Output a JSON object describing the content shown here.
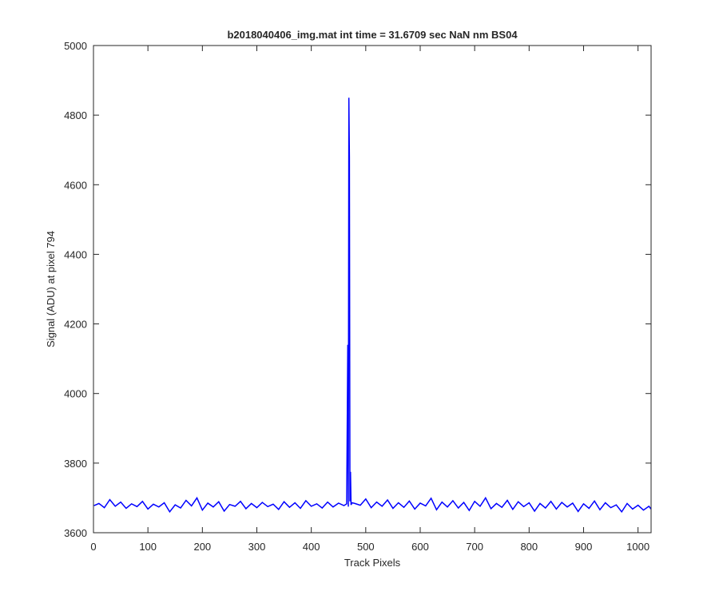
{
  "chart_data": {
    "type": "line",
    "title": "b2018040406_img.mat int time = 31.6709 sec  NaN nm BS04",
    "xlabel": "Track Pixels",
    "ylabel": "Signal (ADU) at pixel 794",
    "color": "#0000ff",
    "xlim": [
      0,
      1024
    ],
    "ylim": [
      3600,
      5000
    ],
    "xticks": [
      0,
      100,
      200,
      300,
      400,
      500,
      600,
      700,
      800,
      900,
      1000
    ],
    "yticks": [
      3600,
      3800,
      4000,
      4200,
      4400,
      4600,
      4800,
      5000
    ],
    "x": [
      1,
      10,
      20,
      30,
      40,
      50,
      60,
      70,
      80,
      90,
      100,
      110,
      120,
      130,
      140,
      150,
      160,
      170,
      180,
      190,
      200,
      210,
      220,
      230,
      240,
      250,
      260,
      270,
      280,
      290,
      300,
      310,
      320,
      330,
      340,
      350,
      360,
      370,
      380,
      390,
      400,
      410,
      420,
      430,
      440,
      450,
      460,
      465,
      467,
      468,
      469,
      470,
      471,
      472,
      473,
      475,
      480,
      490,
      500,
      510,
      520,
      530,
      540,
      550,
      560,
      570,
      580,
      590,
      600,
      610,
      620,
      630,
      640,
      650,
      660,
      670,
      680,
      690,
      700,
      710,
      720,
      730,
      740,
      750,
      760,
      770,
      780,
      790,
      800,
      810,
      820,
      830,
      840,
      850,
      860,
      870,
      880,
      890,
      900,
      910,
      920,
      930,
      940,
      950,
      960,
      970,
      980,
      990,
      1000,
      1010,
      1020,
      1024
    ],
    "values": [
      3678,
      3684,
      3672,
      3695,
      3676,
      3688,
      3670,
      3683,
      3675,
      3690,
      3668,
      3682,
      3674,
      3686,
      3660,
      3680,
      3671,
      3693,
      3677,
      3700,
      3665,
      3685,
      3674,
      3689,
      3662,
      3681,
      3676,
      3690,
      3669,
      3684,
      3672,
      3687,
      3675,
      3682,
      3667,
      3689,
      3673,
      3686,
      3670,
      3692,
      3676,
      3683,
      3671,
      3688,
      3674,
      3685,
      3678,
      3683,
      4140,
      3675,
      4850,
      4680,
      3690,
      3775,
      3680,
      3686,
      3684,
      3679,
      3697,
      3672,
      3688,
      3676,
      3694,
      3670,
      3686,
      3673,
      3691,
      3668,
      3685,
      3677,
      3699,
      3666,
      3688,
      3674,
      3692,
      3671,
      3687,
      3664,
      3690,
      3676,
      3700,
      3669,
      3684,
      3673,
      3693,
      3667,
      3689,
      3675,
      3686,
      3662,
      3684,
      3671,
      3690,
      3668,
      3687,
      3674,
      3685,
      3661,
      3683,
      3670,
      3691,
      3666,
      3686,
      3672,
      3680,
      3660,
      3684,
      3668,
      3679,
      3665,
      3676,
      3668
    ]
  }
}
